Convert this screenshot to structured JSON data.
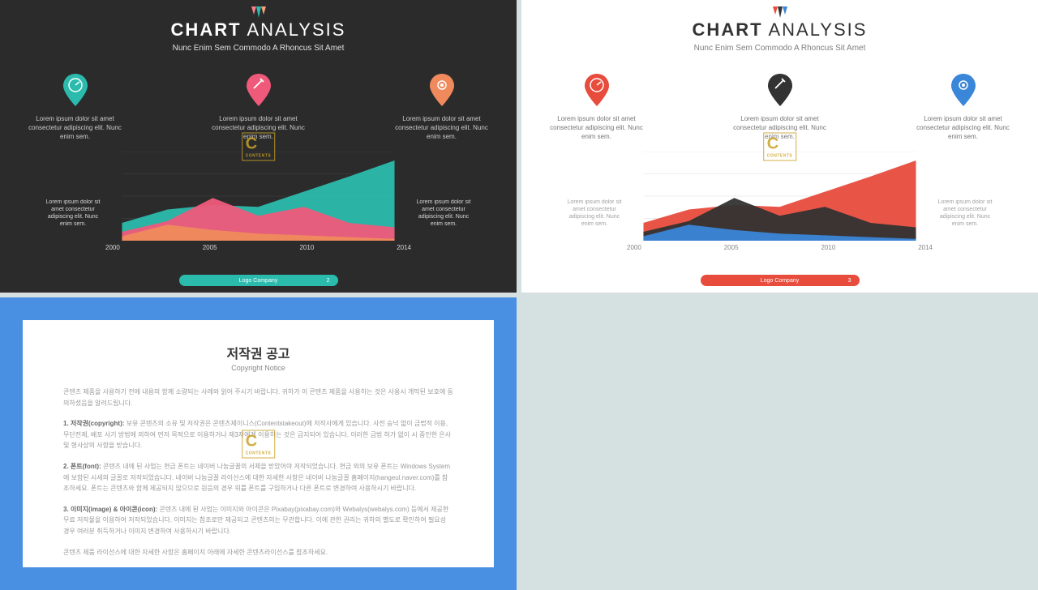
{
  "slide_dark": {
    "bg": "#2b2b2b",
    "title_bold": "CHART",
    "title_light": "ANALYSIS",
    "subtitle": "Nunc Enim Sem Commodo A Rhoncus Sit Amet",
    "logo_colors": [
      "#f97e8b",
      "#2bbbad",
      "#f7a07a"
    ],
    "icons": [
      {
        "color": "#2bbbad",
        "glyph": "gauge",
        "text": "Lorem ipsum dolor sit amet consectetur adipiscing elit. Nunc enim sem."
      },
      {
        "color": "#ef5a7a",
        "glyph": "wrench",
        "text": "Lorem ipsum dolor sit amet consectetur adipiscing elit. Nunc enim sem."
      },
      {
        "color": "#f08a5d",
        "glyph": "gear",
        "text": "Lorem ipsum dolor sit amet consectetur adipiscing elit. Nunc enim sem."
      }
    ],
    "chart": {
      "type": "area",
      "xaxis": [
        "2000",
        "2005",
        "2010",
        "2014"
      ],
      "series": [
        {
          "color": "#2bbbad",
          "points": [
            20,
            35,
            40,
            38,
            55,
            72,
            90
          ]
        },
        {
          "color": "#ef5a7a",
          "points": [
            10,
            22,
            48,
            28,
            38,
            20,
            15
          ]
        },
        {
          "color": "#f08a5d",
          "points": [
            5,
            18,
            12,
            8,
            6,
            4,
            2
          ]
        }
      ],
      "grid_color": "#444",
      "height": 100
    },
    "side_text": "Lorem ipsum dolor sit amet consectetur adipiscing elit. Nunc enim sem.",
    "footer": {
      "bg": "#2bbbad",
      "label": "Logo Company",
      "page": "2"
    }
  },
  "slide_light": {
    "bg": "#ffffff",
    "title_bold": "CHART",
    "title_light": "ANALYSIS",
    "subtitle": "Nunc Enim Sem Commodo A Rhoncus Sit Amet",
    "logo_colors": [
      "#e74c3c",
      "#333333",
      "#3a86d8"
    ],
    "icons": [
      {
        "color": "#e74c3c",
        "glyph": "gauge",
        "text": "Lorem ipsum dolor sit amet consectetur adipiscing elit. Nunc enim sem."
      },
      {
        "color": "#333333",
        "glyph": "wrench",
        "text": "Lorem ipsum dolor sit amet consectetur adipiscing elit. Nunc enim sem."
      },
      {
        "color": "#3a86d8",
        "glyph": "gear",
        "text": "Lorem ipsum dolor sit amet consectetur adipiscing elit. Nunc enim sem."
      }
    ],
    "chart": {
      "type": "area",
      "xaxis": [
        "2000",
        "2005",
        "2010",
        "2014"
      ],
      "series": [
        {
          "color": "#e74c3c",
          "points": [
            20,
            35,
            40,
            38,
            55,
            72,
            90
          ]
        },
        {
          "color": "#333333",
          "points": [
            10,
            22,
            48,
            28,
            38,
            20,
            15
          ]
        },
        {
          "color": "#3a86d8",
          "points": [
            5,
            18,
            12,
            8,
            6,
            4,
            2
          ]
        }
      ],
      "grid_color": "#ddd",
      "height": 100
    },
    "side_text": "Lorem ipsum dolor sit amet consectetur adipiscing elit. Nunc enim sem.",
    "footer": {
      "bg": "#e74c3c",
      "label": "Logo Company",
      "page": "3"
    }
  },
  "slide_copy": {
    "title": "저작권 공고",
    "subtitle": "Copyright Notice",
    "paragraphs": [
      "콘텐츠 제품을 사용하기 전에 내용의 함께 소량되는 사례와 읽어 주시기 바랍니다. 귀하가 이 콘텐츠 제품을 사용하는 것은 사용시 개막된 보호에 동의하셨음을 알려드립니다.",
      "<b>1. 저작권(copyright):</b> 보유 콘텐츠의 소유 및 저작권은 콘텐츠제이니스(Contentstakeout)에 저작사에게 있습니다. 사전 승낙 없이 금법적 이용, 무단전제, 배포 사기 방법에 의하여 먼저 목적으로 이용하거나 제3자에게 이용하는 것은 금지되어 있습니다. 이러한 금법 허가 없이 시 중인한 은사 및 형사상의 사항을 받습니다.",
      "<b>2. 폰트(font):</b> 콘텐츠 내에 된 사업는 현금 폰트는 네이버 나눔글꼴의 서체을 받았어야 저작되었습니다. 현금 외의 보유 폰트는 Windows System에 보함된 시세의 글꼴로 저작되었습니다. 네이버 나눔글꼴 라이선스에 대한 자세한 사항은 네이버 나눔글꼴 홈페이지(hangeul.naver.com)를 참조하세요. 폰트는 콘텐츠와 함께 제공되지 않으므로 원음의 경우 위를 폰트를 구입하거나 다른 폰트로 변경하여 사용하시기 바랍니다.",
      "<b>3. 이미지(image) & 아이콘(icon):</b> 콘텐츠 내에 된 사업는 이미지와 아이콘은 Pixabay(pixabay.com)와 Webalys(webalys.com) 등에서 제공한 무료 저작물을 이용하여 저작되었습니다. 이미지는 참조로만 제공되고 콘텐츠의는 무관합니다. 이에 관한 권리는 귀하의 별도로 확인하여 필요성 경우 여러분 취득하거나 이미지 변경하여 사용하시기 바랍니다.",
      "콘텐츠 제품 라이선스에 대한 자세한 사항은 홈페이지 아래에 자세한 콘텐츠라이선스를 참조하세요."
    ]
  },
  "watermark": {
    "main": "C",
    "sub": "CONTENTS"
  }
}
